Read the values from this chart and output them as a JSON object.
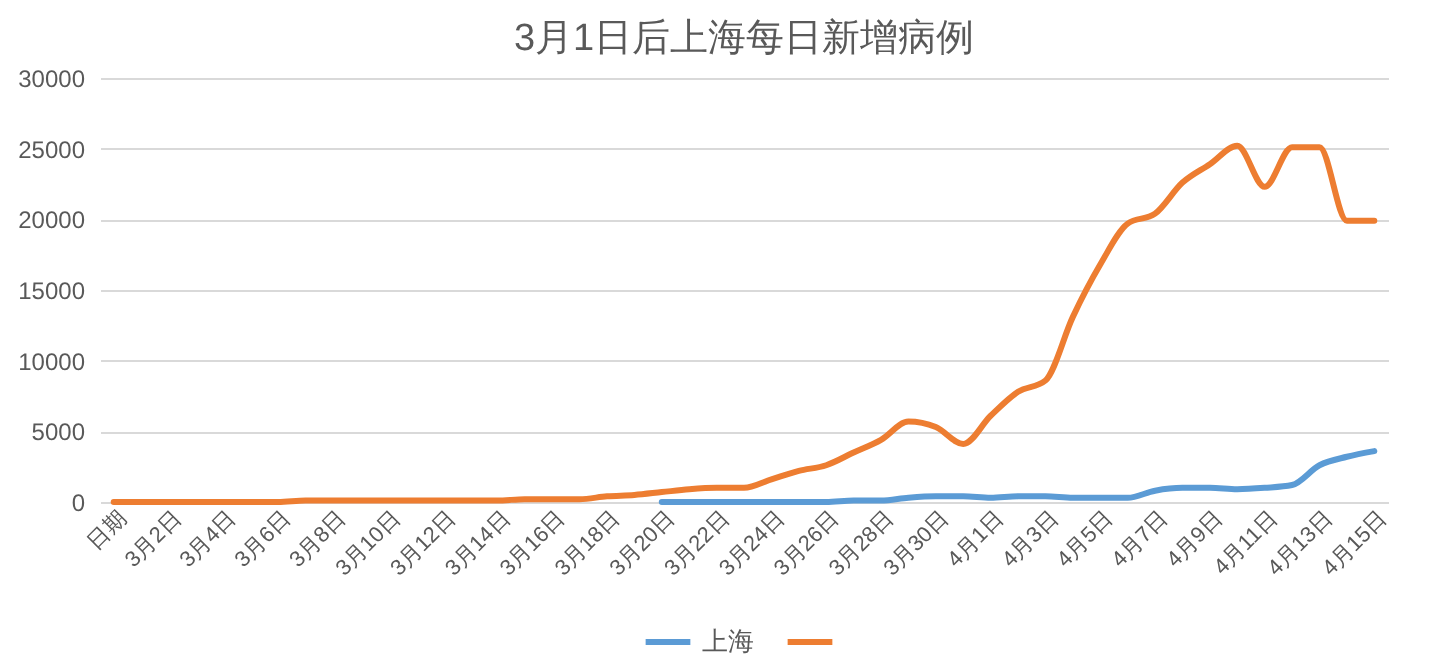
{
  "chart_data": {
    "type": "line",
    "title": "3月1日后上海每日新增病例",
    "categories": [
      "日期",
      null,
      "3月2日",
      null,
      "3月4日",
      null,
      "3月6日",
      null,
      "3月8日",
      null,
      "3月10日",
      null,
      "3月12日",
      null,
      "3月14日",
      null,
      "3月16日",
      null,
      "3月18日",
      null,
      "3月20日",
      null,
      "3月22日",
      null,
      "3月24日",
      null,
      "3月26日",
      null,
      "3月28日",
      null,
      "3月30日",
      null,
      "4月1日",
      null,
      "4月3日",
      null,
      "4月5日",
      null,
      "4月7日",
      null,
      "4月9日",
      null,
      "4月11日",
      null,
      "4月13日",
      null,
      "4月15日"
    ],
    "series": [
      {
        "name": "上海",
        "color": "#5b9bd5",
        "values": [
          null,
          null,
          null,
          null,
          null,
          null,
          null,
          null,
          null,
          null,
          null,
          null,
          null,
          null,
          null,
          null,
          null,
          null,
          null,
          null,
          0,
          0,
          0,
          0,
          0,
          0,
          0,
          100,
          100,
          300,
          400,
          400,
          300,
          400,
          400,
          300,
          300,
          300,
          800,
          1000,
          1000,
          900,
          1000,
          1200,
          2600,
          3200,
          3600
        ]
      },
      {
        "color": "#ed7d31",
        "values": [
          0,
          0,
          0,
          0,
          0,
          0,
          0,
          100,
          100,
          100,
          100,
          100,
          100,
          100,
          100,
          200,
          200,
          200,
          400,
          500,
          700,
          900,
          1000,
          1000,
          1600,
          2200,
          2600,
          3500,
          4400,
          5700,
          5300,
          4100,
          6100,
          7800,
          8600,
          13100,
          16800,
          19700,
          20400,
          22600,
          23900,
          25200,
          22300,
          25100,
          25100,
          19900,
          19900
        ]
      }
    ],
    "ylim": [
      0,
      30000
    ],
    "yticks": [
      0,
      5000,
      10000,
      15000,
      20000,
      25000,
      30000
    ],
    "grid": "y",
    "legend": "bottom"
  }
}
